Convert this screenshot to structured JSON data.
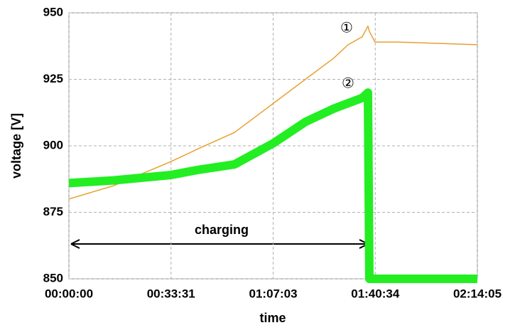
{
  "chart_data": {
    "type": "line",
    "xlabel": "time",
    "ylabel": "voltage [V]",
    "annotations": [
      "①",
      "②",
      "charging"
    ],
    "x": [
      0,
      881,
      2001,
      2560,
      3260,
      4030,
      4659,
      5219,
      5499,
      5778,
      5890,
      5918,
      6030,
      6478,
      8045
    ],
    "series": [
      {
        "name": "①",
        "color": "#e8a030",
        "values": [
          880,
          885,
          894,
          899,
          905,
          916,
          925,
          933,
          938,
          941,
          945,
          943,
          939,
          939,
          938
        ]
      },
      {
        "name": "②",
        "color": "#22ee22",
        "values": [
          886,
          887,
          889,
          891,
          893,
          901,
          909,
          914,
          916,
          918,
          920,
          850,
          850,
          850,
          850
        ]
      }
    ],
    "xlim": [
      0,
      8045
    ],
    "xticks": [
      {
        "value": 0,
        "label": "00:00:00"
      },
      {
        "value": 2011,
        "label": "00:33:31"
      },
      {
        "value": 4023,
        "label": "01:07:03"
      },
      {
        "value": 6034,
        "label": "01:40:34"
      },
      {
        "value": 8045,
        "label": "02:14:05"
      }
    ],
    "ylim": [
      850,
      950
    ],
    "yticks": [
      850,
      875,
      900,
      925,
      950
    ],
    "grid": true
  }
}
